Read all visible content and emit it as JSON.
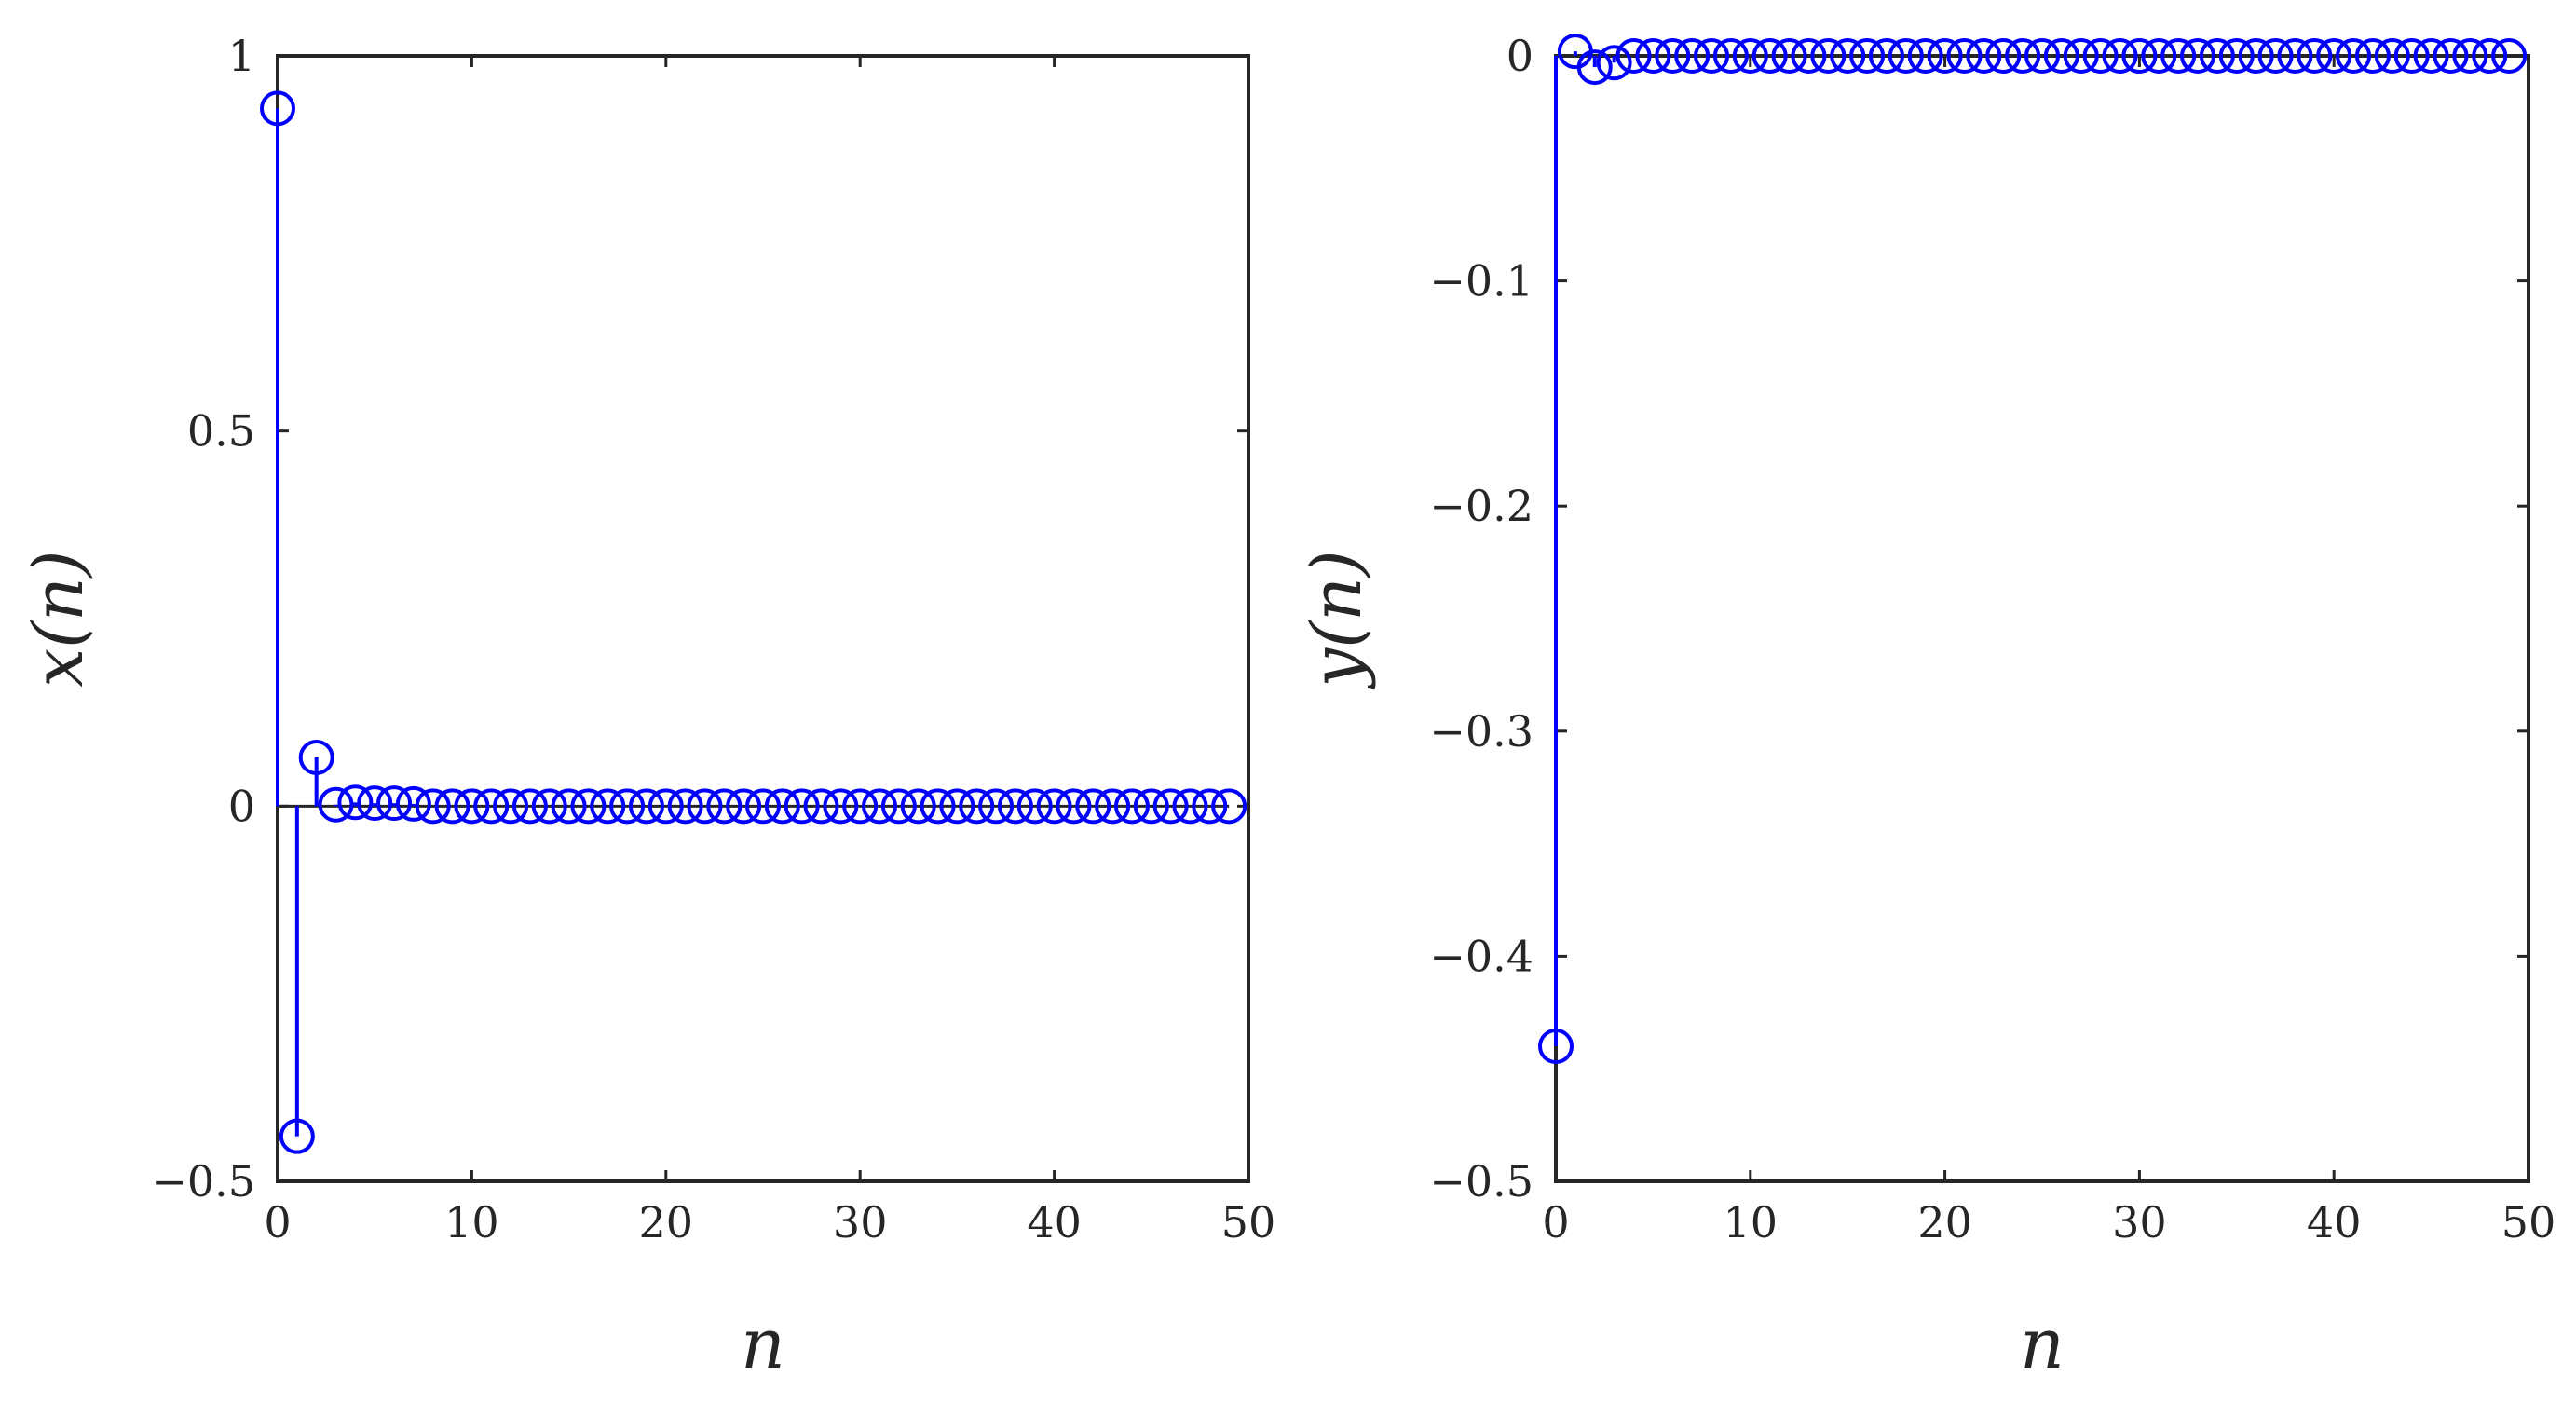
{
  "colors": {
    "series": "#0000ff",
    "axes": "#262626",
    "background": "#ffffff"
  },
  "chart_data": [
    {
      "type": "stem",
      "marker": "circle",
      "xlabel": "n",
      "ylabel": "x(n)",
      "xlim": [
        0,
        50
      ],
      "ylim": [
        -0.5,
        1
      ],
      "xticks": [
        0,
        10,
        20,
        30,
        40,
        50
      ],
      "xtick_labels": [
        "0",
        "10",
        "20",
        "30",
        "40",
        "50"
      ],
      "yticks": [
        -0.5,
        0,
        0.5,
        1
      ],
      "ytick_labels": [
        "-0.5",
        "0",
        "0.5",
        "1"
      ],
      "grid": false,
      "baseline": 0,
      "x": [
        0,
        1,
        2,
        3,
        4,
        5,
        6,
        7,
        8,
        9,
        10,
        11,
        12,
        13,
        14,
        15,
        16,
        17,
        18,
        19,
        20,
        21,
        22,
        23,
        24,
        25,
        26,
        27,
        28,
        29,
        30,
        31,
        32,
        33,
        34,
        35,
        36,
        37,
        38,
        39,
        40,
        41,
        42,
        43,
        44,
        45,
        46,
        47,
        48,
        49
      ],
      "y": [
        0.93,
        -0.44,
        0.065,
        0.002,
        0.005,
        0.004,
        0.004,
        0.003,
        0,
        0,
        0,
        0,
        0,
        0,
        0,
        0,
        0,
        0,
        0,
        0,
        0,
        0,
        0,
        0,
        0,
        0,
        0,
        0,
        0,
        0,
        0,
        0,
        0,
        0,
        0,
        0,
        0,
        0,
        0,
        0,
        0,
        0,
        0,
        0,
        0,
        0,
        0,
        0,
        0,
        0
      ]
    },
    {
      "type": "stem",
      "marker": "circle",
      "xlabel": "n",
      "ylabel": "y(n)",
      "xlim": [
        0,
        50
      ],
      "ylim": [
        -0.5,
        0
      ],
      "xticks": [
        0,
        10,
        20,
        30,
        40,
        50
      ],
      "xtick_labels": [
        "0",
        "10",
        "20",
        "30",
        "40",
        "50"
      ],
      "yticks": [
        -0.5,
        -0.4,
        -0.3,
        -0.2,
        -0.1,
        0
      ],
      "ytick_labels": [
        "-0.5",
        "-0.4",
        "-0.3",
        "-0.2",
        "-0.1",
        "0"
      ],
      "grid": false,
      "baseline": 0,
      "x": [
        0,
        1,
        2,
        3,
        4,
        5,
        6,
        7,
        8,
        9,
        10,
        11,
        12,
        13,
        14,
        15,
        16,
        17,
        18,
        19,
        20,
        21,
        22,
        23,
        24,
        25,
        26,
        27,
        28,
        29,
        30,
        31,
        32,
        33,
        34,
        35,
        36,
        37,
        38,
        39,
        40,
        41,
        42,
        43,
        44,
        45,
        46,
        47,
        48,
        49
      ],
      "y": [
        -0.44,
        0.002,
        -0.005,
        -0.003,
        0,
        0,
        0,
        0,
        0,
        0,
        0,
        0,
        0,
        0,
        0,
        0,
        0,
        0,
        0,
        0,
        0,
        0,
        0,
        0,
        0,
        0,
        0,
        0,
        0,
        0,
        0,
        0,
        0,
        0,
        0,
        0,
        0,
        0,
        0,
        0,
        0,
        0,
        0,
        0,
        0,
        0,
        0,
        0,
        0,
        0
      ]
    }
  ]
}
